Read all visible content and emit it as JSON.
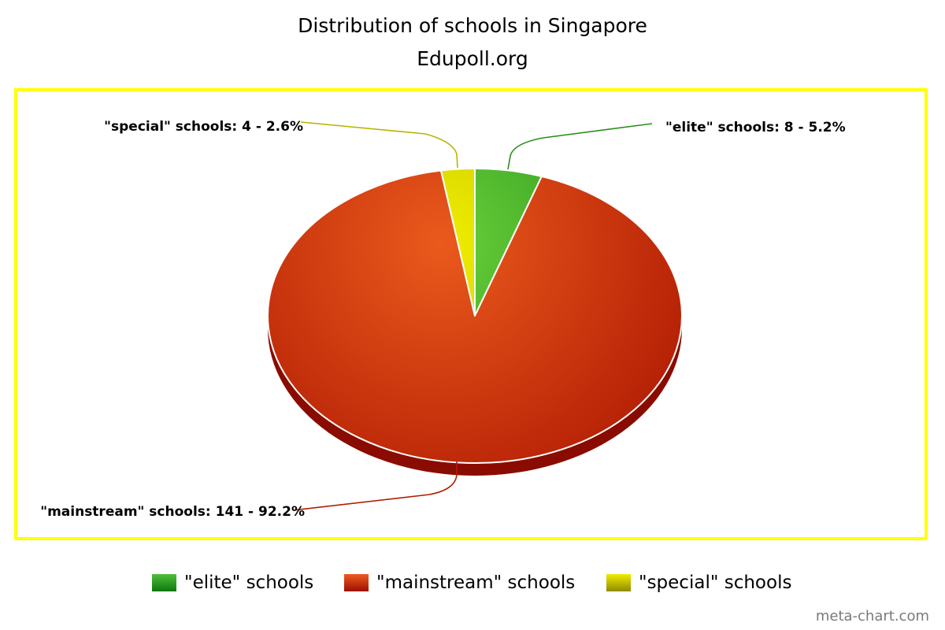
{
  "chart_data": {
    "type": "pie",
    "title": "Distribution of schools in Singapore",
    "subtitle": "Edupoll.org",
    "slices": [
      {
        "name": "\"elite\" schools",
        "value": 8,
        "percent": 5.2,
        "label": "\"elite\" schools: 8 - 5.2%",
        "color": "#2f9e2a"
      },
      {
        "name": "\"mainstream\" schools",
        "value": 141,
        "percent": 92.2,
        "label": "\"mainstream\" schools: 141 - 92.2%",
        "color": "#cc2a08"
      },
      {
        "name": "\"special\" schools",
        "value": 4,
        "percent": 2.6,
        "label": "\"special\" schools: 4 - 2.6%",
        "color": "#d4d400"
      }
    ],
    "legend_position": "bottom",
    "frame_color": "#ffff00"
  },
  "credit": "meta-chart.com"
}
